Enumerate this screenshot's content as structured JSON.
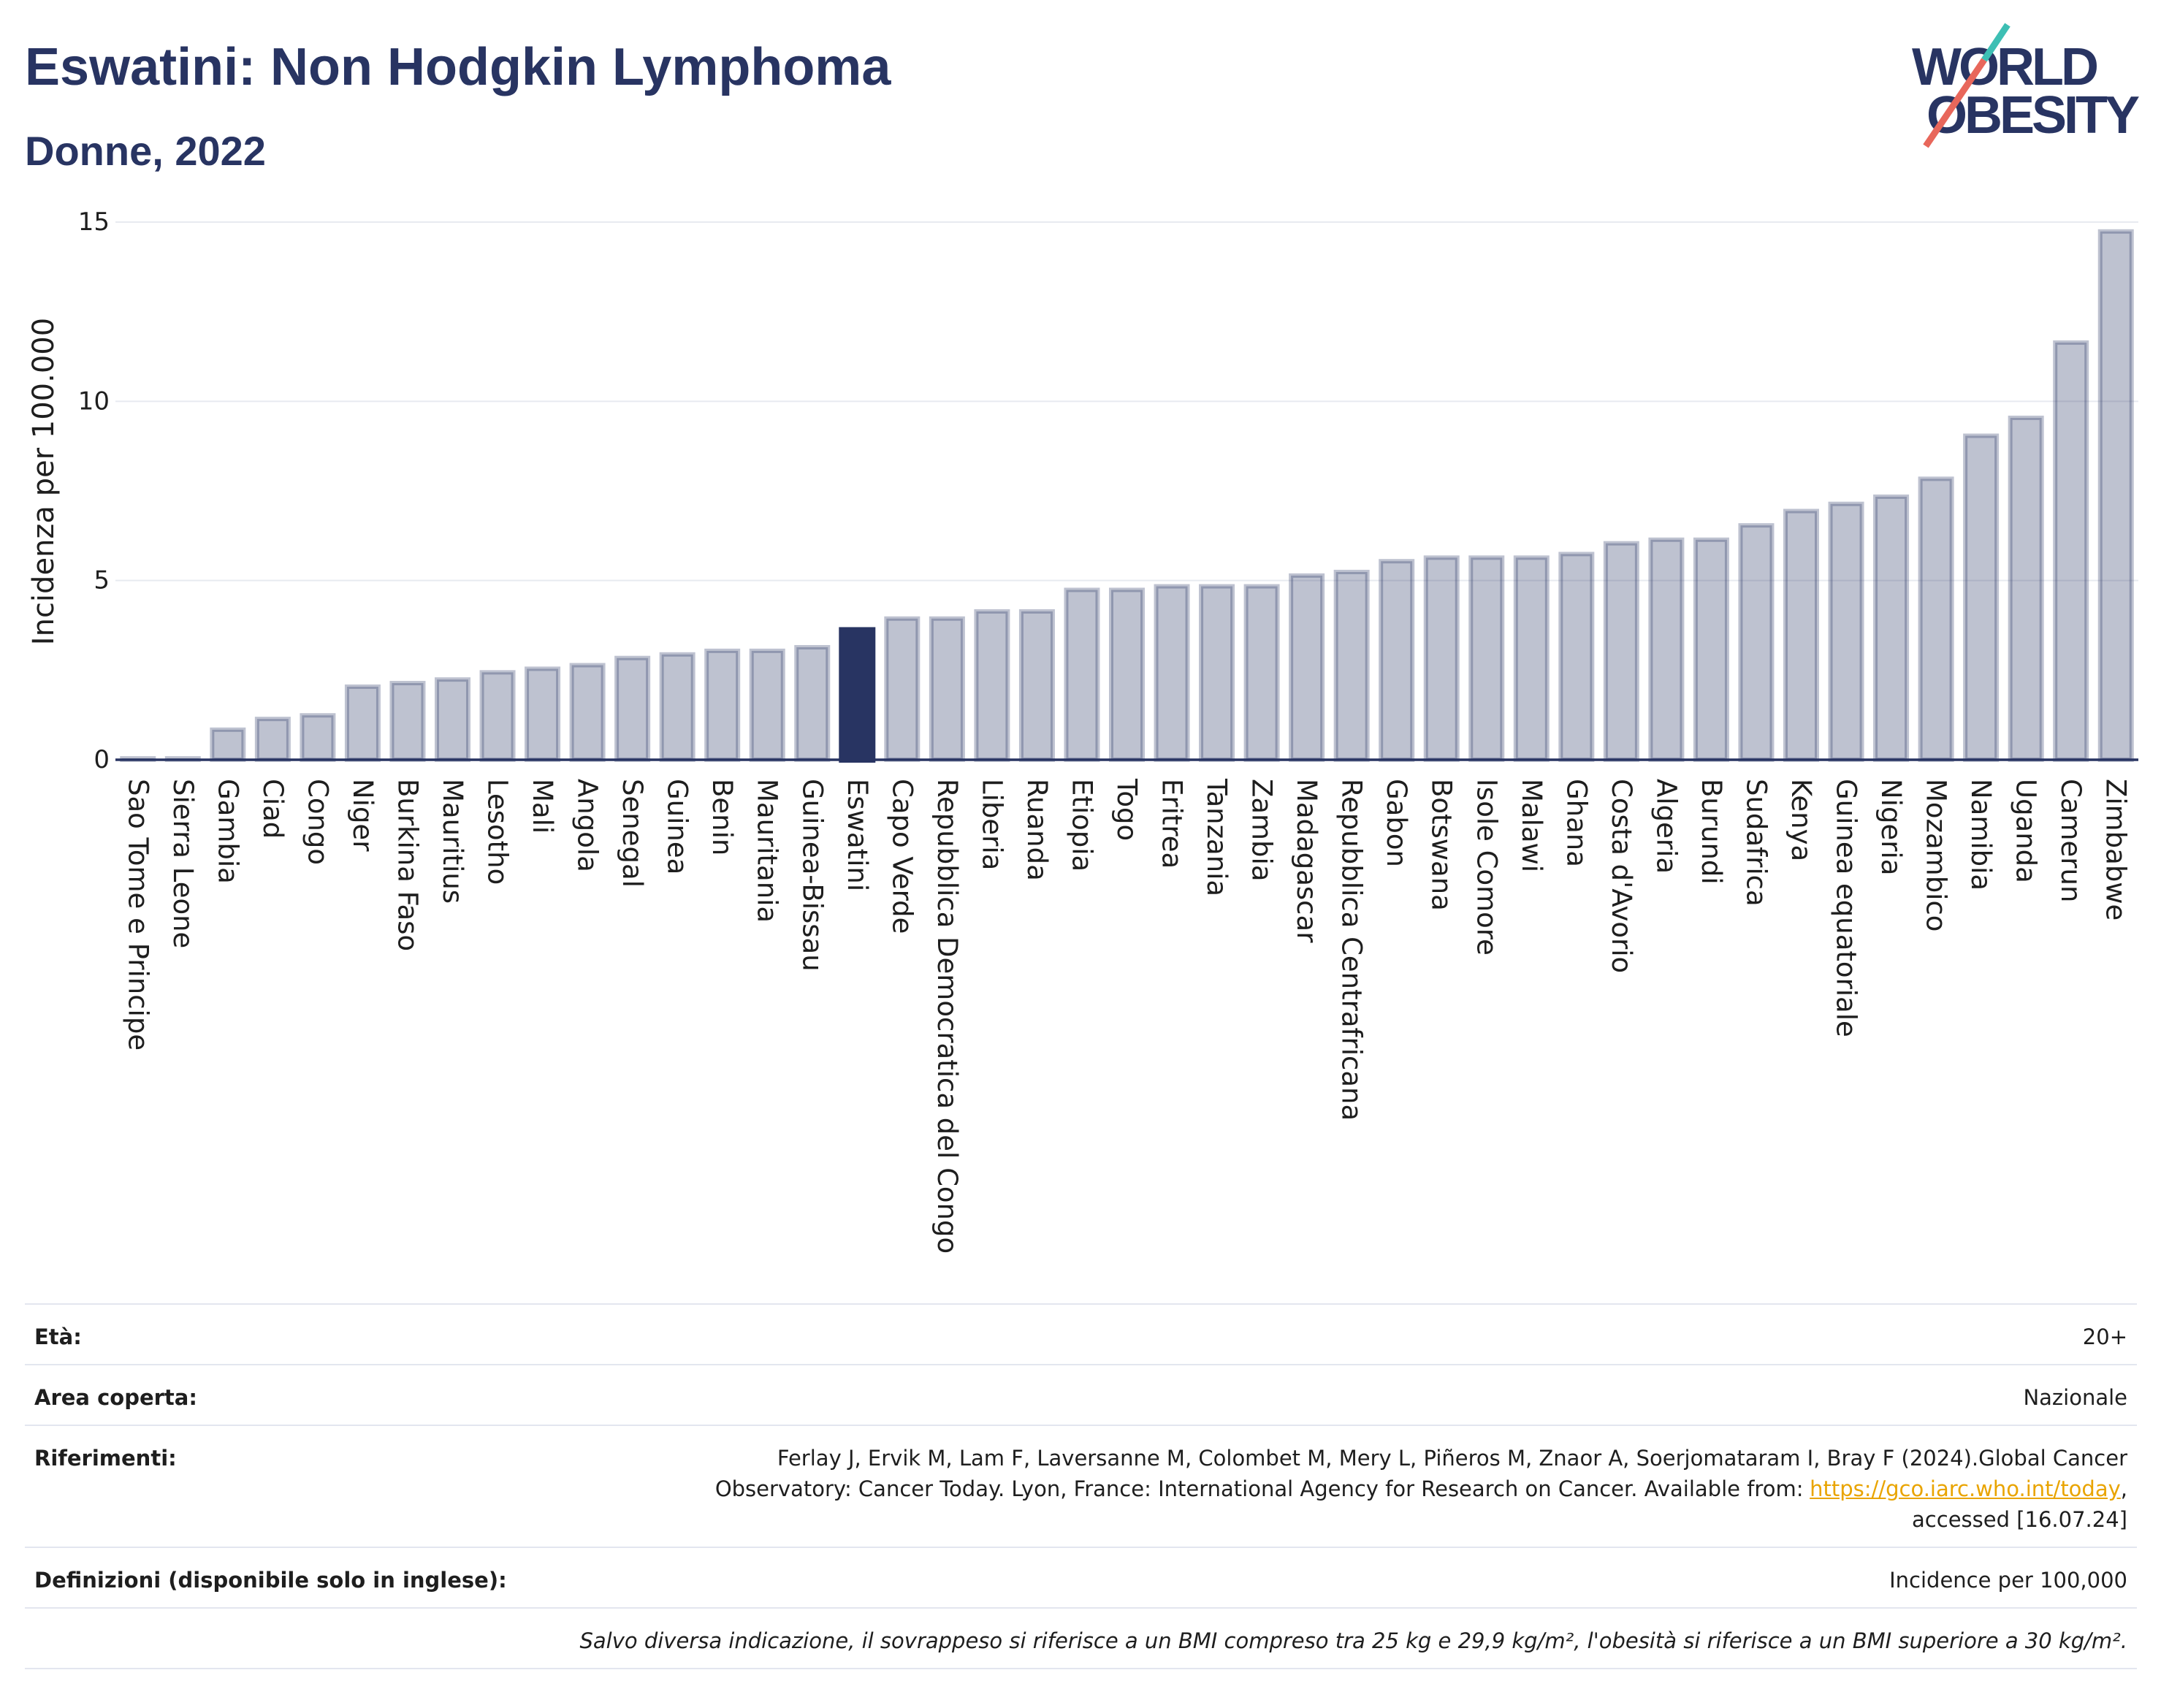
{
  "chart_data": {
    "type": "bar",
    "title": "Eswatini: Non Hodgkin Lymphoma",
    "subtitle": "Donne, 2022",
    "ylabel": "Incidenza per 100.000",
    "ylim": [
      0,
      15
    ],
    "yticks": [
      0,
      5,
      10,
      15
    ],
    "grid": true,
    "highlight": "Eswatini",
    "categories": [
      "Sao Tome e Principe",
      "Sierra Leone",
      "Gambia",
      "Ciad",
      "Congo",
      "Niger",
      "Burkina Faso",
      "Mauritius",
      "Lesotho",
      "Mali",
      "Angola",
      "Senegal",
      "Guinea",
      "Benin",
      "Mauritania",
      "Guinea-Bissau",
      "Eswatini",
      "Capo Verde",
      "Repubblica Democratica del Congo",
      "Liberia",
      "Ruanda",
      "Etiopia",
      "Togo",
      "Eritrea",
      "Tanzania",
      "Zambia",
      "Madagascar",
      "Repubblica Centrafricana",
      "Gabon",
      "Botswana",
      "Isole Comore",
      "Malawi",
      "Ghana",
      "Costa d'Avorio",
      "Algeria",
      "Burundi",
      "Sudafrica",
      "Kenya",
      "Guinea equatoriale",
      "Nigeria",
      "Mozambico",
      "Namibia",
      "Uganda",
      "Camerun",
      "Zimbabwe"
    ],
    "values": [
      0.1,
      0.1,
      0.9,
      1.2,
      1.3,
      2.1,
      2.2,
      2.3,
      2.5,
      2.6,
      2.7,
      2.9,
      3.0,
      3.1,
      3.1,
      3.2,
      3.7,
      4.0,
      4.0,
      4.2,
      4.2,
      4.8,
      4.8,
      4.9,
      4.9,
      4.9,
      5.2,
      5.3,
      5.6,
      5.7,
      5.7,
      5.7,
      5.8,
      6.1,
      6.2,
      6.2,
      6.6,
      7.0,
      7.2,
      7.4,
      7.9,
      9.1,
      9.6,
      11.7,
      14.8
    ]
  },
  "logo": {
    "line1": "WORLD",
    "line2": "OBESITY"
  },
  "info": {
    "age": {
      "label": "Età:",
      "value": "20+"
    },
    "area": {
      "label": "Area coperta:",
      "value": "Nazionale"
    },
    "references": {
      "label": "Riferimenti:",
      "line1": "Ferlay J, Ervik M, Lam F, Laversanne M, Colombet M, Mery L, Piñeros M, Znaor A, Soerjomataram I, Bray F (2024).Global Cancer",
      "line2": "Observatory: Cancer Today. Lyon, France: International Agency for Research on Cancer. Available from:",
      "link": "https://gco.iarc.who.int/today",
      "line2_end": ",",
      "line3": "accessed [16.07.24]"
    },
    "definitions": {
      "label": "Definizioni (disponibile solo in inglese):",
      "value": "Incidence per 100,000"
    },
    "note": "Salvo diversa indicazione, il sovrappeso si riferisce a un BMI compreso tra 25 kg e 29,9 kg/m², l'obesità si riferisce a un BMI superiore a 30 kg/m²."
  },
  "colors": {
    "primary": "#283462",
    "bar_fill": "rgba(40,52,98,0.3)",
    "bar_stroke": "rgba(40,52,98,0.3)",
    "gridline": "#e8eaf0",
    "table_line": "#e3e6ef",
    "link": "#e9a400",
    "logo_teal": "#3dbfb4",
    "logo_red": "#e8675b"
  }
}
